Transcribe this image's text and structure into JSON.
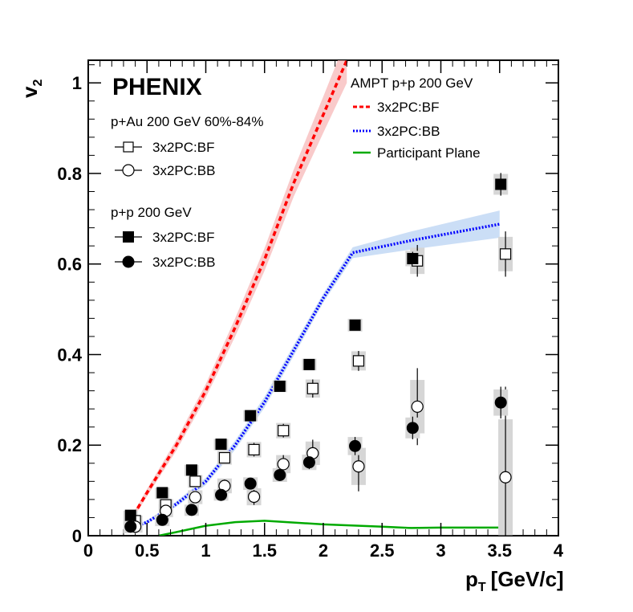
{
  "chart_data": {
    "type": "scatter",
    "title": "PHENIX",
    "xlabel": "p",
    "xlabel_sub": "T",
    "xlabel_unit": "[GeV/c]",
    "ylabel": "v",
    "ylabel_sub": "2",
    "xlim": [
      0,
      4
    ],
    "ylim": [
      0,
      1.05
    ],
    "x_ticks": [
      0,
      0.5,
      1,
      1.5,
      2,
      2.5,
      3,
      3.5,
      4
    ],
    "x_tick_labels": [
      "0",
      "0.5",
      "1",
      "1.5",
      "2",
      "2.5",
      "3",
      "3.5",
      "4"
    ],
    "y_ticks": [
      0,
      0.2,
      0.4,
      0.6,
      0.8,
      1
    ],
    "y_tick_labels": [
      "0",
      "0.2",
      "0.4",
      "0.6",
      "0.8",
      "1"
    ],
    "legend_data": {
      "group1_title": "p+Au 200 GeV 60%-84%",
      "group2_title": "p+p 200 GeV",
      "ampt_title": "AMPT p+p 200 GeV",
      "pau_bf": "3x2PC:BF",
      "pau_bb": "3x2PC:BB",
      "pp_bf": "3x2PC:BF",
      "pp_bb": "3x2PC:BB",
      "ampt_bf": "3x2PC:BF",
      "ampt_bb": "3x2PC:BB",
      "ampt_pp": "Participant Plane"
    },
    "series": [
      {
        "name": "p+Au 3x2PC:BF",
        "marker": "open-square",
        "x": [
          0.4,
          0.66,
          0.91,
          1.16,
          1.41,
          1.66,
          1.91,
          2.3,
          2.8,
          3.55
        ],
        "y": [
          0.033,
          0.068,
          0.12,
          0.172,
          0.19,
          0.232,
          0.325,
          0.386,
          0.607,
          0.622
        ],
        "err": [
          0.006,
          0.008,
          0.01,
          0.012,
          0.015,
          0.015,
          0.02,
          0.022,
          0.035,
          0.05
        ]
      },
      {
        "name": "p+Au 3x2PC:BB",
        "marker": "open-circle",
        "x": [
          0.4,
          0.66,
          0.91,
          1.16,
          1.41,
          1.66,
          1.91,
          2.3,
          2.8,
          3.55
        ],
        "y": [
          0.02,
          0.055,
          0.085,
          0.11,
          0.086,
          0.158,
          0.182,
          0.153,
          0.285,
          0.129
        ],
        "err": [
          0.006,
          0.01,
          0.012,
          0.014,
          0.018,
          0.02,
          0.03,
          0.055,
          0.085,
          0.2
        ]
      },
      {
        "name": "p+p 3x2PC:BF",
        "marker": "filled-square",
        "x": [
          0.36,
          0.63,
          0.88,
          1.13,
          1.38,
          1.63,
          1.88,
          2.27,
          2.76,
          3.51
        ],
        "y": [
          0.045,
          0.095,
          0.145,
          0.202,
          0.265,
          0.33,
          0.378,
          0.465,
          0.612,
          0.776
        ],
        "err": [
          0.004,
          0.005,
          0.006,
          0.006,
          0.007,
          0.008,
          0.008,
          0.01,
          0.015,
          0.025
        ]
      },
      {
        "name": "p+p 3x2PC:BB",
        "marker": "filled-circle",
        "x": [
          0.36,
          0.63,
          0.88,
          1.13,
          1.38,
          1.63,
          1.88,
          2.27,
          2.76,
          3.51
        ],
        "y": [
          0.02,
          0.035,
          0.057,
          0.09,
          0.115,
          0.134,
          0.162,
          0.198,
          0.238,
          0.294
        ],
        "err": [
          0.004,
          0.005,
          0.006,
          0.007,
          0.01,
          0.012,
          0.015,
          0.02,
          0.025,
          0.035
        ]
      }
    ],
    "lines": [
      {
        "name": "AMPT 3x2PC:BF",
        "style": "dashed",
        "color": "#ff0000",
        "x": [
          0.35,
          0.5,
          0.75,
          1.0,
          1.25,
          1.5,
          1.75,
          2.0,
          2.2
        ],
        "y": [
          0.03,
          0.095,
          0.2,
          0.32,
          0.46,
          0.61,
          0.78,
          0.93,
          1.05
        ],
        "band": [
          0.005,
          0.008,
          0.012,
          0.015,
          0.02,
          0.025,
          0.03,
          0.04,
          0.05
        ]
      },
      {
        "name": "AMPT 3x2PC:BB",
        "style": "dotted",
        "color": "#0000ff",
        "x": [
          0.35,
          0.5,
          0.75,
          1.0,
          1.25,
          1.5,
          1.75,
          2.0,
          2.25,
          2.75,
          3.5
        ],
        "y": [
          0.015,
          0.03,
          0.07,
          0.12,
          0.2,
          0.295,
          0.41,
          0.525,
          0.625,
          0.652,
          0.688
        ],
        "band": [
          0.003,
          0.004,
          0.006,
          0.008,
          0.01,
          0.012,
          0.012,
          0.01,
          0.012,
          0.02,
          0.03
        ]
      },
      {
        "name": "AMPT Participant Plane",
        "style": "solid",
        "color": "#00aa00",
        "x": [
          0.6,
          0.75,
          1.0,
          1.25,
          1.5,
          2.0,
          2.5,
          2.75,
          3.0,
          3.5
        ],
        "y": [
          0.0,
          0.008,
          0.022,
          0.03,
          0.033,
          0.025,
          0.02,
          0.017,
          0.018,
          0.018
        ],
        "band": [
          0,
          0,
          0,
          0,
          0,
          0,
          0,
          0,
          0,
          0
        ]
      }
    ]
  }
}
